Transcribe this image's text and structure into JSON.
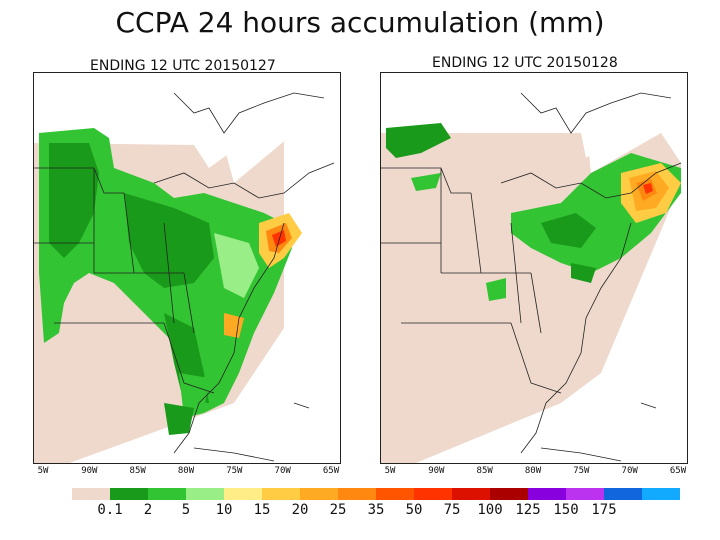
{
  "title": "CCPA 24 hours accumulation (mm)",
  "panels": [
    {
      "label": "ENDING 12 UTC 20150127"
    },
    {
      "label": "ENDING 12 UTC 20150128"
    }
  ],
  "axis_labels": [
    "5W",
    "90W",
    "85W",
    "80W",
    "75W",
    "70W",
    "65W"
  ],
  "colorbar": {
    "colors": [
      "#eed9cc",
      "#1a9a1a",
      "#33c433",
      "#99ee88",
      "#ffee88",
      "#ffcc44",
      "#ffaa22",
      "#ff8811",
      "#ff5500",
      "#ff3300",
      "#dd1100",
      "#aa0000",
      "#8800dd",
      "#bb33ee",
      "#1166dd",
      "#11aaff"
    ],
    "labels": [
      "0.1",
      "2",
      "5",
      "10",
      "15",
      "20",
      "25",
      "35",
      "50",
      "75",
      "100",
      "125",
      "150",
      "175"
    ]
  }
}
